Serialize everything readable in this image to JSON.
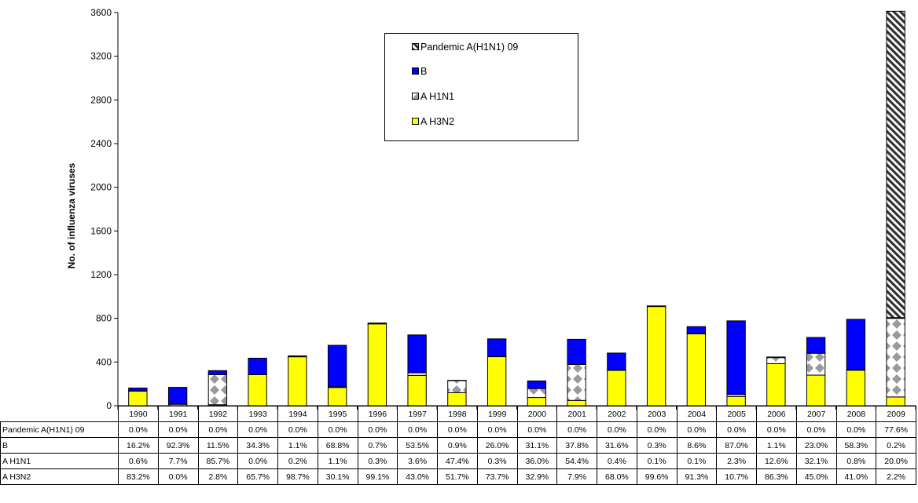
{
  "chart_data": {
    "type": "bar",
    "stacked": true,
    "categories": [
      "1990",
      "1991",
      "1992",
      "1993",
      "1994",
      "1995",
      "1996",
      "1997",
      "1998",
      "1999",
      "2000",
      "2001",
      "2002",
      "2003",
      "2004",
      "2005",
      "2006",
      "2007",
      "2008",
      "2009"
    ],
    "series": [
      {
        "name": "A H3N2",
        "color": "#ffff00",
        "pattern": "solid",
        "values": [
          135,
          0,
          9,
          285,
          450,
          167,
          750,
          278,
          120,
          450,
          75,
          48,
          325,
          910,
          660,
          83,
          385,
          280,
          325,
          80
        ]
      },
      {
        "name": "A H1N1",
        "color": "#ffffff",
        "pattern": "grey-diamond",
        "values": [
          1,
          13,
          275,
          0,
          1,
          6,
          2,
          23,
          110,
          2,
          82,
          330,
          2,
          1,
          1,
          18,
          56,
          200,
          6,
          720
        ]
      },
      {
        "name": "B",
        "color": "#0000ff",
        "pattern": "solid",
        "values": [
          26,
          155,
          37,
          150,
          5,
          380,
          5,
          347,
          2,
          160,
          70,
          230,
          155,
          3,
          63,
          676,
          5,
          145,
          460,
          7
        ]
      },
      {
        "name": "Pandemic A(H1N1) 09",
        "color": "#ffffff",
        "pattern": "diagonal-hatch",
        "values": [
          0,
          0,
          0,
          0,
          0,
          0,
          0,
          0,
          0,
          0,
          0,
          0,
          0,
          0,
          0,
          0,
          0,
          0,
          0,
          2805
        ]
      }
    ],
    "ylabel": "No. of influenza viruses",
    "ylim": [
      0,
      3600
    ],
    "yticks": [
      0,
      400,
      800,
      1200,
      1600,
      2000,
      2400,
      2800,
      3200,
      3600
    ],
    "grid": false,
    "legend_position": "top-center",
    "legend": [
      "Pandemic A(H1N1) 09",
      "B",
      "A H1N1",
      "A H3N2"
    ],
    "table": {
      "rows": [
        {
          "label": "Pandemic A(H1N1) 09",
          "values": [
            "0.0%",
            "0.0%",
            "0.0%",
            "0.0%",
            "0.0%",
            "0.0%",
            "0.0%",
            "0.0%",
            "0.0%",
            "0.0%",
            "0.0%",
            "0.0%",
            "0.0%",
            "0.0%",
            "0.0%",
            "0.0%",
            "0.0%",
            "0.0%",
            "0.0%",
            "77.6%"
          ]
        },
        {
          "label": "B",
          "values": [
            "16.2%",
            "92.3%",
            "11.5%",
            "34.3%",
            "1.1%",
            "68.8%",
            "0.7%",
            "53.5%",
            "0.9%",
            "26.0%",
            "31.1%",
            "37.8%",
            "31.6%",
            "0.3%",
            "8.6%",
            "87.0%",
            "1.1%",
            "23.0%",
            "58.3%",
            "0.2%"
          ]
        },
        {
          "label": "A H1N1",
          "values": [
            "0.6%",
            "7.7%",
            "85.7%",
            "0.0%",
            "0.2%",
            "1.1%",
            "0.3%",
            "3.6%",
            "47.4%",
            "0.3%",
            "36.0%",
            "54.4%",
            "0.4%",
            "0.1%",
            "0.1%",
            "2.3%",
            "12.6%",
            "32.1%",
            "0.8%",
            "20.0%"
          ]
        },
        {
          "label": "A H3N2",
          "values": [
            "83.2%",
            "0.0%",
            "2.8%",
            "65.7%",
            "98.7%",
            "30.1%",
            "99.1%",
            "43.0%",
            "51.7%",
            "73.7%",
            "32.9%",
            "7.9%",
            "68.0%",
            "99.6%",
            "91.3%",
            "10.7%",
            "86.3%",
            "45.0%",
            "41.0%",
            "2.2%"
          ]
        }
      ]
    }
  }
}
